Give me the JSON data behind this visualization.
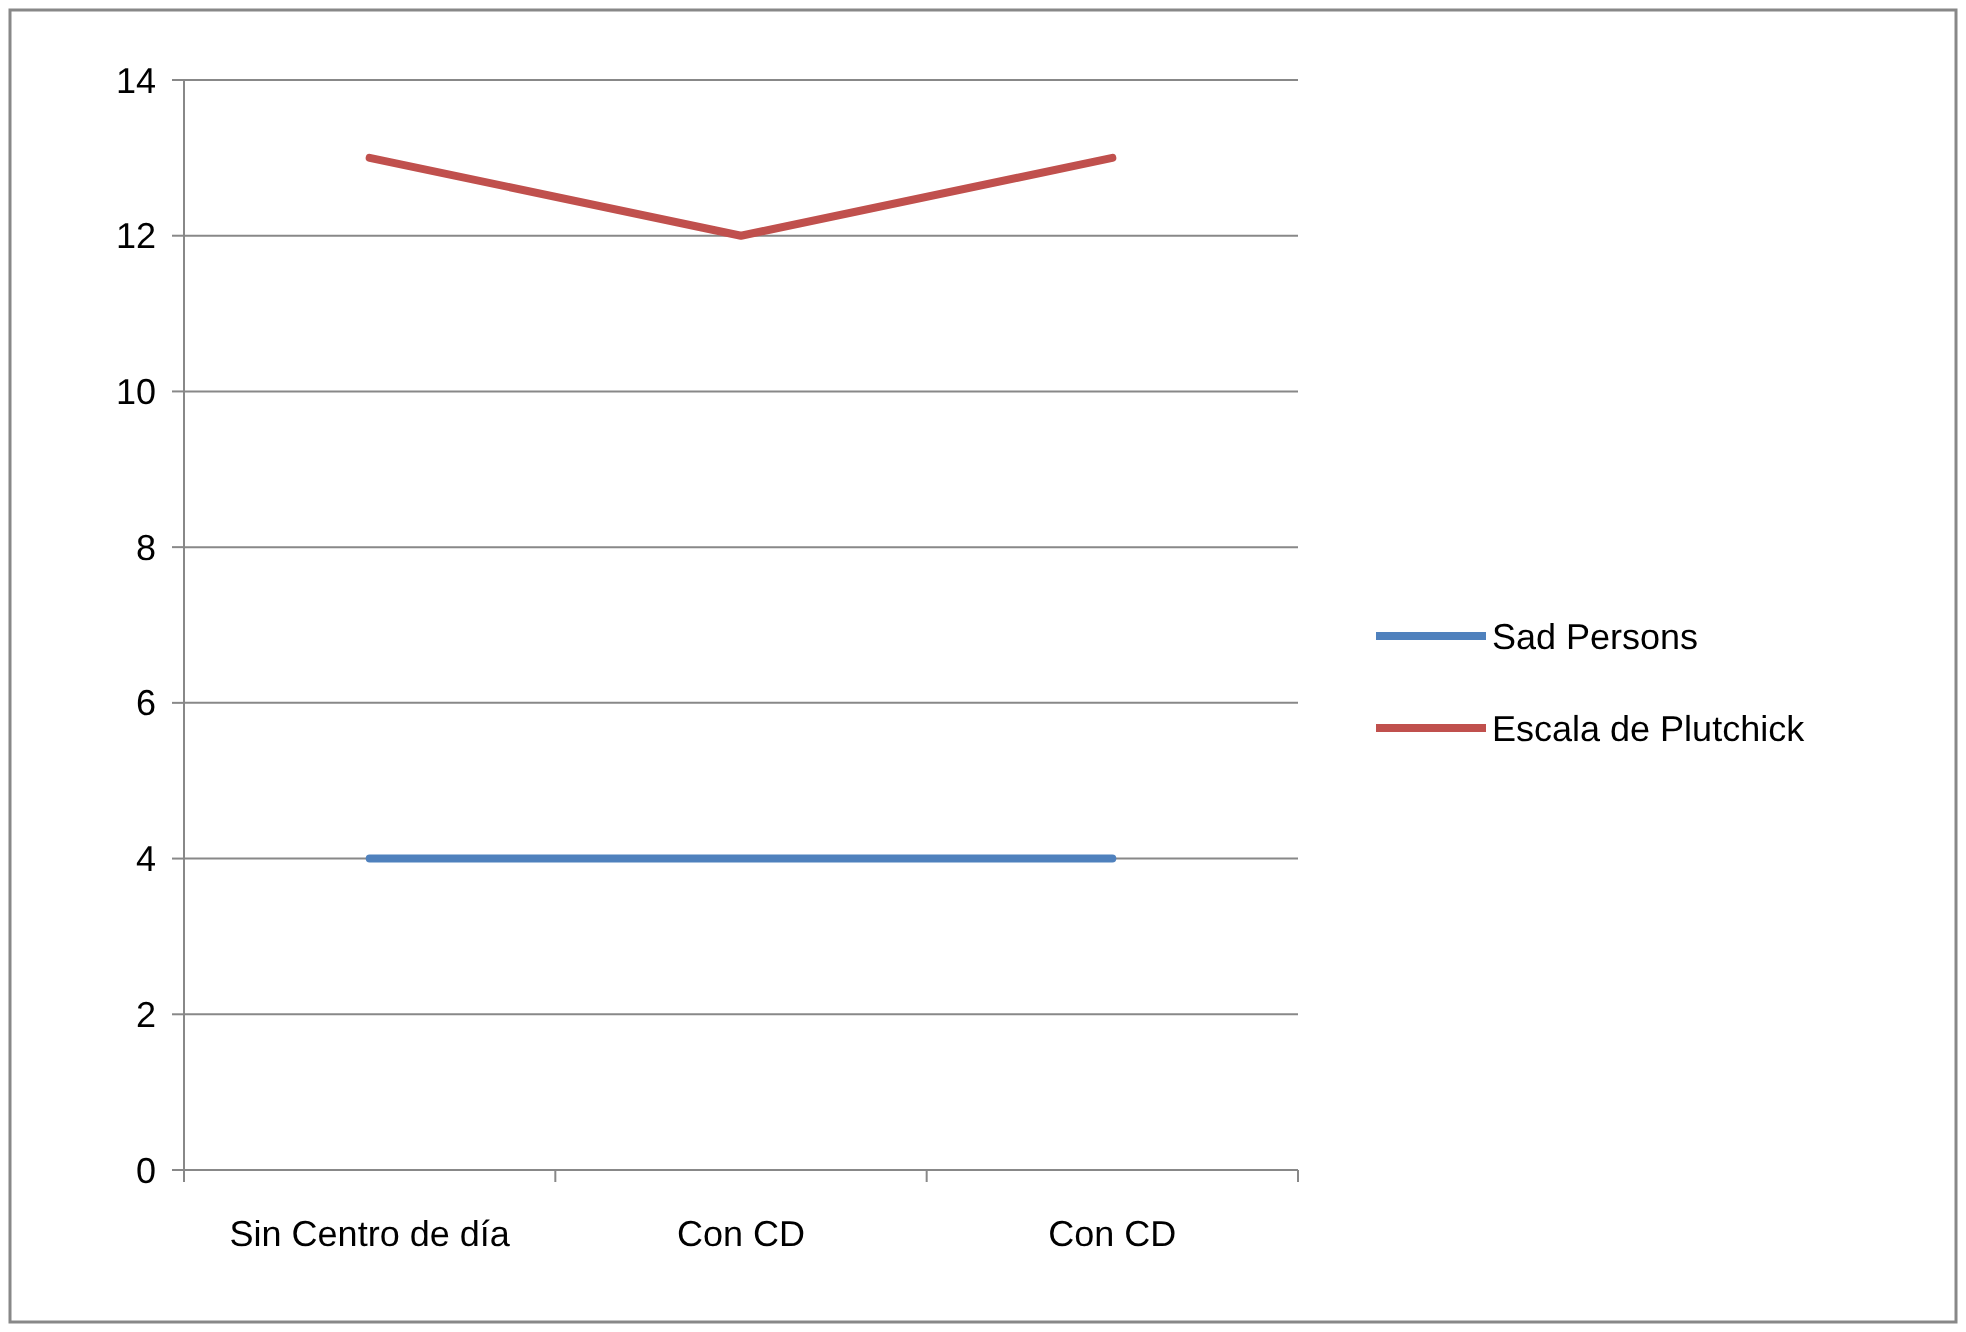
{
  "chart_data": {
    "type": "line",
    "categories": [
      "Sin Centro de día",
      "Con CD",
      "Con CD"
    ],
    "series": [
      {
        "name": "Sad Persons",
        "color": "#4f81bd",
        "values": [
          4,
          4,
          4
        ]
      },
      {
        "name": "Escala de Plutchick",
        "color": "#c0504d",
        "values": [
          13,
          12,
          13
        ]
      }
    ],
    "ylim": [
      0,
      14
    ],
    "yticks": [
      0,
      2,
      4,
      6,
      8,
      10,
      12,
      14
    ],
    "grid": "y",
    "legend": "right",
    "marker": "none",
    "line_style": "solid"
  }
}
